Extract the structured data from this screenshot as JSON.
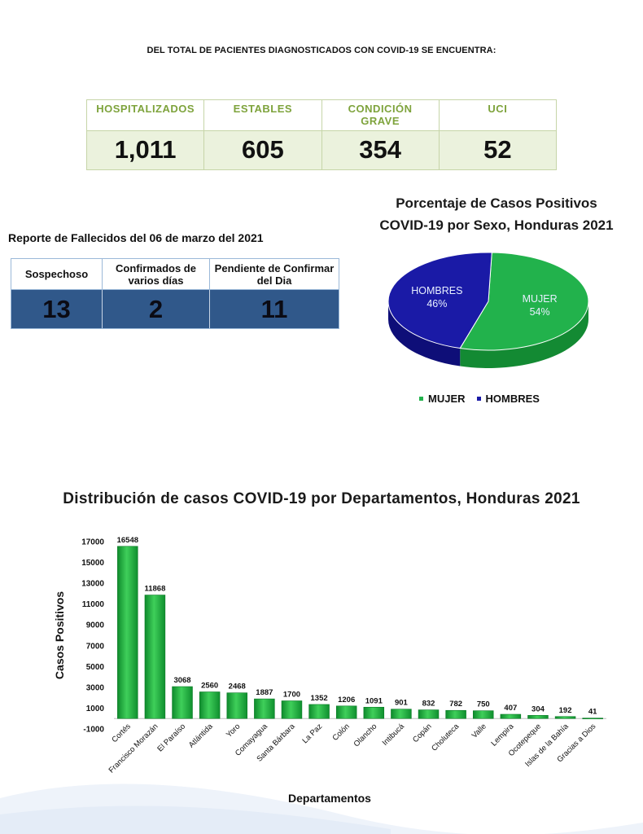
{
  "intro": "DEL TOTAL DE PACIENTES DIAGNOSTICADOS CON COVID-19 SE ENCUENTRA:",
  "status": [
    {
      "label": "HOSPITALIZADOS",
      "value": "1,011"
    },
    {
      "label": "ESTABLES",
      "value": "605"
    },
    {
      "label": "CONDICIÓN GRAVE",
      "value": "354"
    },
    {
      "label": "UCI",
      "value": "52"
    }
  ],
  "deaths": {
    "title": "Reporte de Fallecidos del 06 de marzo del 2021",
    "headers": [
      "Sospechoso",
      "Confirmados de varios días",
      "Pendiente de Confirmar del Dia"
    ],
    "values": [
      "13",
      "2",
      "11"
    ]
  },
  "colors": {
    "accent_green": "#7ea33c",
    "table_fill": "#ebf2dd",
    "deaths_fill": "#30588a",
    "mujer": "#22b24c",
    "hombres": "#1a1aa6",
    "bar": "#1fae3f"
  },
  "chart_data": [
    {
      "type": "pie",
      "title": "Porcentaje de Casos Positivos COVID-19 por Sexo, Honduras 2021",
      "title_lines": [
        "Porcentaje de Casos Positivos",
        "COVID-19 por Sexo, Honduras 2021"
      ],
      "style": "3d",
      "legend_position": "bottom",
      "slices": [
        {
          "label": "MUJER",
          "value": 54,
          "display": "54%"
        },
        {
          "label": "HOMBRES",
          "value": 46,
          "display": "46%"
        }
      ]
    },
    {
      "type": "bar",
      "title": "Distribución de casos COVID-19 por Departamentos, Honduras 2021",
      "xlabel": "Departamentos",
      "ylabel": "Casos Positivos",
      "ylim": [
        -1000,
        17000
      ],
      "yticks": [
        -1000,
        1000,
        3000,
        5000,
        7000,
        9000,
        11000,
        13000,
        15000,
        17000
      ],
      "grid": false,
      "categories": [
        "Cortés",
        "Francisco Morazán",
        "El Paraíso",
        "Atlántida",
        "Yoro",
        "Comayagua",
        "Santa Bárbara",
        "La Paz",
        "Colón",
        "Olancho",
        "Intibucá",
        "Copán",
        "Choluteca",
        "Valle",
        "Lempira",
        "Ocotepeque",
        "Islas de la Bahía",
        "Gracias a Dios"
      ],
      "values": [
        16548,
        11868,
        3068,
        2560,
        2468,
        1887,
        1700,
        1352,
        1206,
        1091,
        901,
        832,
        782,
        750,
        407,
        304,
        192,
        41
      ]
    }
  ]
}
